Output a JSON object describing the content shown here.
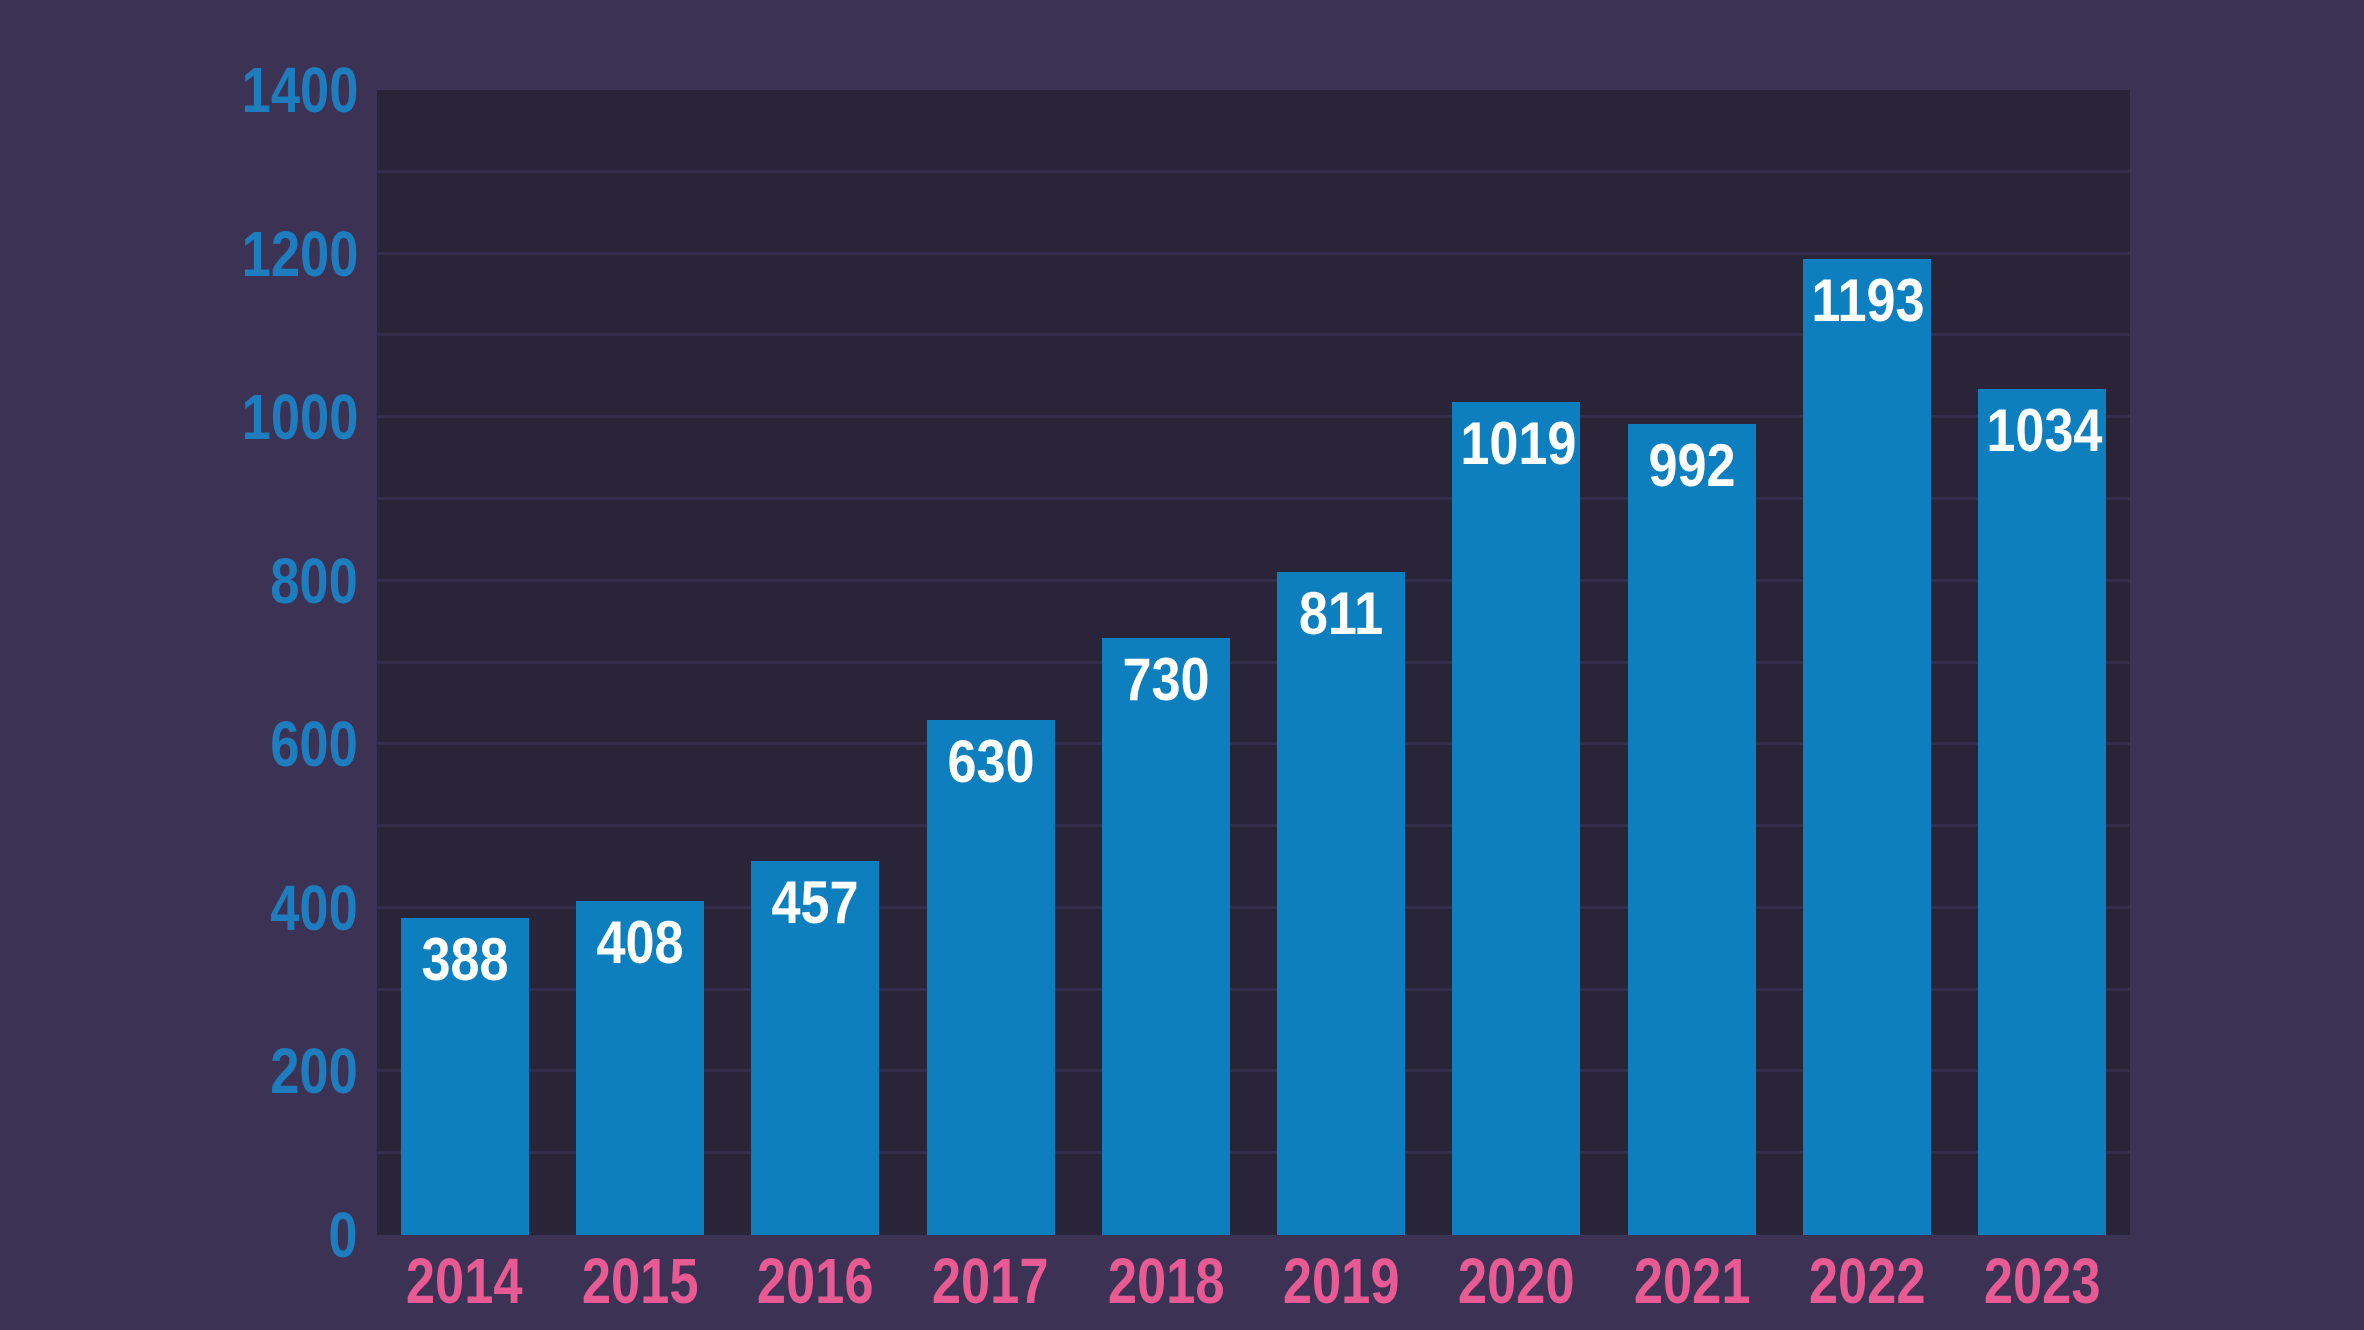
{
  "chart_data": {
    "type": "bar",
    "title": "",
    "xlabel": "",
    "ylabel": "",
    "categories": [
      "2014",
      "2015",
      "2016",
      "2017",
      "2018",
      "2019",
      "2020",
      "2021",
      "2022",
      "2023"
    ],
    "values": [
      388,
      408,
      457,
      630,
      730,
      811,
      1019,
      992,
      1193,
      1034
    ],
    "value_labels": [
      "388",
      "408",
      "457",
      "630",
      "730",
      "811",
      "1019",
      "992",
      "1193",
      "1034"
    ],
    "ylim": [
      0,
      1400
    ],
    "y_ticks": [
      0,
      200,
      400,
      600,
      800,
      1000,
      1200,
      1400
    ],
    "y_tick_labels": [
      "0",
      "200",
      "400",
      "600",
      "800",
      "1000",
      "1200",
      "1400"
    ],
    "gridline_step": 100,
    "grid": "horizontal-minor-every-100",
    "legend": "none",
    "colors": {
      "background": "#3b3254",
      "plot_background": "#2a2438",
      "gridline": "#352e4b",
      "bar": "#0e7fbe",
      "y_tick_label": "#1e7dbe",
      "x_tick_label": "#e75a93",
      "value_label": "#ffffff"
    }
  }
}
